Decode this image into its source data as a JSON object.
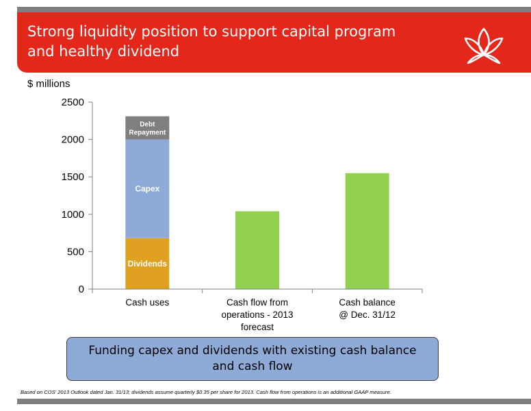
{
  "slide": {
    "title_line1": "Strong liquidity position to support capital program",
    "title_line2": "and healthy dividend",
    "unit_label": "$ millions",
    "callout_line1": "Funding capex and dividends with existing cash balance",
    "callout_line2": "and cash flow",
    "footnote": "Based on COS' 2013 Outlook dated Jan. 31/13; dividends assume quarterly $0.35 per share for 2013.  Cash flow from operations is an additional GAAP measure.",
    "logo_icon": "lotus-flower-icon"
  },
  "colors": {
    "banner": "#e4271b",
    "dividends": "#e0a120",
    "capex": "#8eaad7",
    "debt_repayment": "#7f7f7f",
    "green_bars": "#92d050",
    "rule_bars": "#7f7f7f"
  },
  "chart_data": {
    "type": "bar",
    "stacked": true,
    "categories": [
      "Cash uses",
      "Cash flow from operations -  2013 forecast",
      "Cash balance @ Dec. 31/12"
    ],
    "category_label_lines": [
      [
        "Cash uses"
      ],
      [
        "Cash flow from",
        "operations -  2013",
        "forecast"
      ],
      [
        "Cash balance",
        "@ Dec. 31/12"
      ]
    ],
    "series": [
      {
        "name": "Dividends",
        "values": [
          680,
          null,
          null
        ]
      },
      {
        "name": "Capex",
        "values": [
          1320,
          null,
          null
        ]
      },
      {
        "name": "Debt Repayment",
        "values": [
          310,
          null,
          null
        ]
      },
      {
        "name": "",
        "values": [
          null,
          1040,
          1550
        ]
      }
    ],
    "segment_labels": [
      [
        "Dividends"
      ],
      [
        "Capex"
      ],
      [
        "Debt",
        "Repayment"
      ]
    ],
    "ylabel": "$ millions",
    "ylim": [
      0,
      2500
    ],
    "yticks": [
      0,
      500,
      1000,
      1500,
      2000,
      2500
    ],
    "grid": false,
    "legend": "none"
  }
}
